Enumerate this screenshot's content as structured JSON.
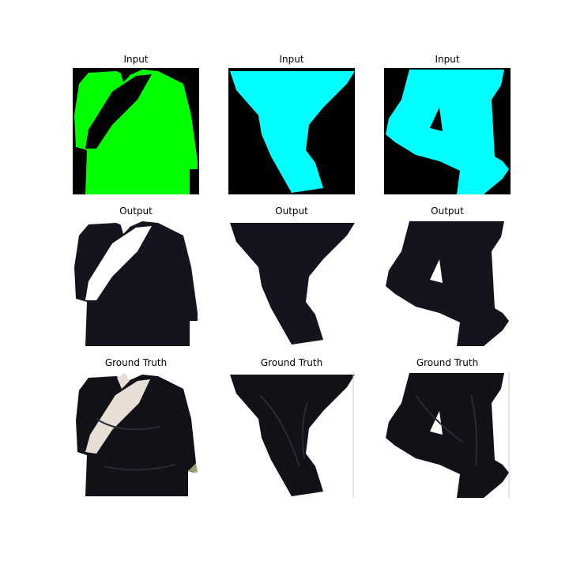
{
  "grid": {
    "rows": [
      {
        "label": "Input",
        "panels": [
          {
            "title": "Input",
            "kind": "segmentation-mask",
            "background": "#000000",
            "mask_color": "#00ff00",
            "content": "upper-body garment mask"
          },
          {
            "title": "Input",
            "kind": "segmentation-mask",
            "background": "#000000",
            "mask_color": "#00ffff",
            "content": "trousers mask (standing)"
          },
          {
            "title": "Input",
            "kind": "segmentation-mask",
            "background": "#000000",
            "mask_color": "#00ffff",
            "content": "trousers mask (bent knee)"
          }
        ]
      },
      {
        "label": "Output",
        "panels": [
          {
            "title": "Output",
            "kind": "generated-image",
            "background": "#ffffff",
            "garment_color": "#14141f",
            "content": "generated black top"
          },
          {
            "title": "Output",
            "kind": "generated-image",
            "background": "#ffffff",
            "garment_color": "#14141f",
            "content": "generated black trousers"
          },
          {
            "title": "Output",
            "kind": "generated-image",
            "background": "#ffffff",
            "garment_color": "#14141f",
            "content": "generated black trousers (bent knee)"
          }
        ]
      },
      {
        "label": "Ground Truth",
        "panels": [
          {
            "title": "Ground Truth",
            "kind": "photo",
            "background": "#ffffff",
            "garment_color": "#111118",
            "content": "black t-shirt photo"
          },
          {
            "title": "Ground Truth",
            "kind": "photo",
            "background": "#ffffff",
            "garment_color": "#111118",
            "content": "black trousers photo"
          },
          {
            "title": "Ground Truth",
            "kind": "photo",
            "background": "#ffffff",
            "garment_color": "#111118",
            "content": "black trousers photo (bent knee)"
          }
        ]
      }
    ]
  }
}
